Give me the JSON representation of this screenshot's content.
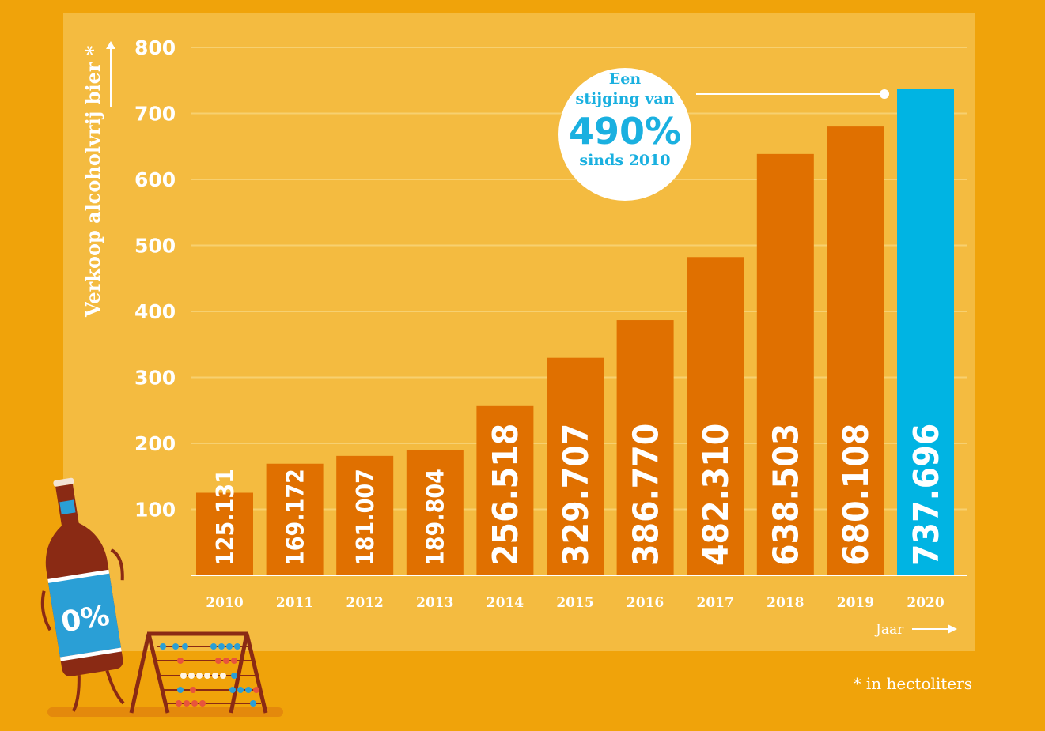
{
  "chart_data": {
    "type": "bar",
    "categories": [
      "2010",
      "2011",
      "2012",
      "2013",
      "2014",
      "2015",
      "2016",
      "2017",
      "2018",
      "2019",
      "2020"
    ],
    "values": [
      125131,
      169172,
      181007,
      189804,
      256518,
      329707,
      386770,
      482310,
      638503,
      680108,
      737696
    ],
    "value_labels": [
      "125.131",
      "169.172",
      "181.007",
      "189.804",
      "256.518",
      "329.707",
      "386.770",
      "482.310",
      "638.503",
      "680.108",
      "737.696"
    ],
    "y_ticks": [
      "100",
      "200",
      "300",
      "400",
      "500",
      "600",
      "700",
      "800"
    ],
    "ylabel": "Verkoop alcoholvrij bier *",
    "xlabel": "Jaar",
    "grid": true,
    "highlight_index": 10,
    "colors": {
      "bar": "#e07000",
      "highlight": "#00b4e3",
      "panel": "#f4bb40",
      "background": "#f0a30a"
    },
    "callout": {
      "line1": "Een",
      "line2": "stijging van",
      "big": "490%",
      "line3": "sinds 2010"
    },
    "footnote": "* in hectoliters"
  }
}
